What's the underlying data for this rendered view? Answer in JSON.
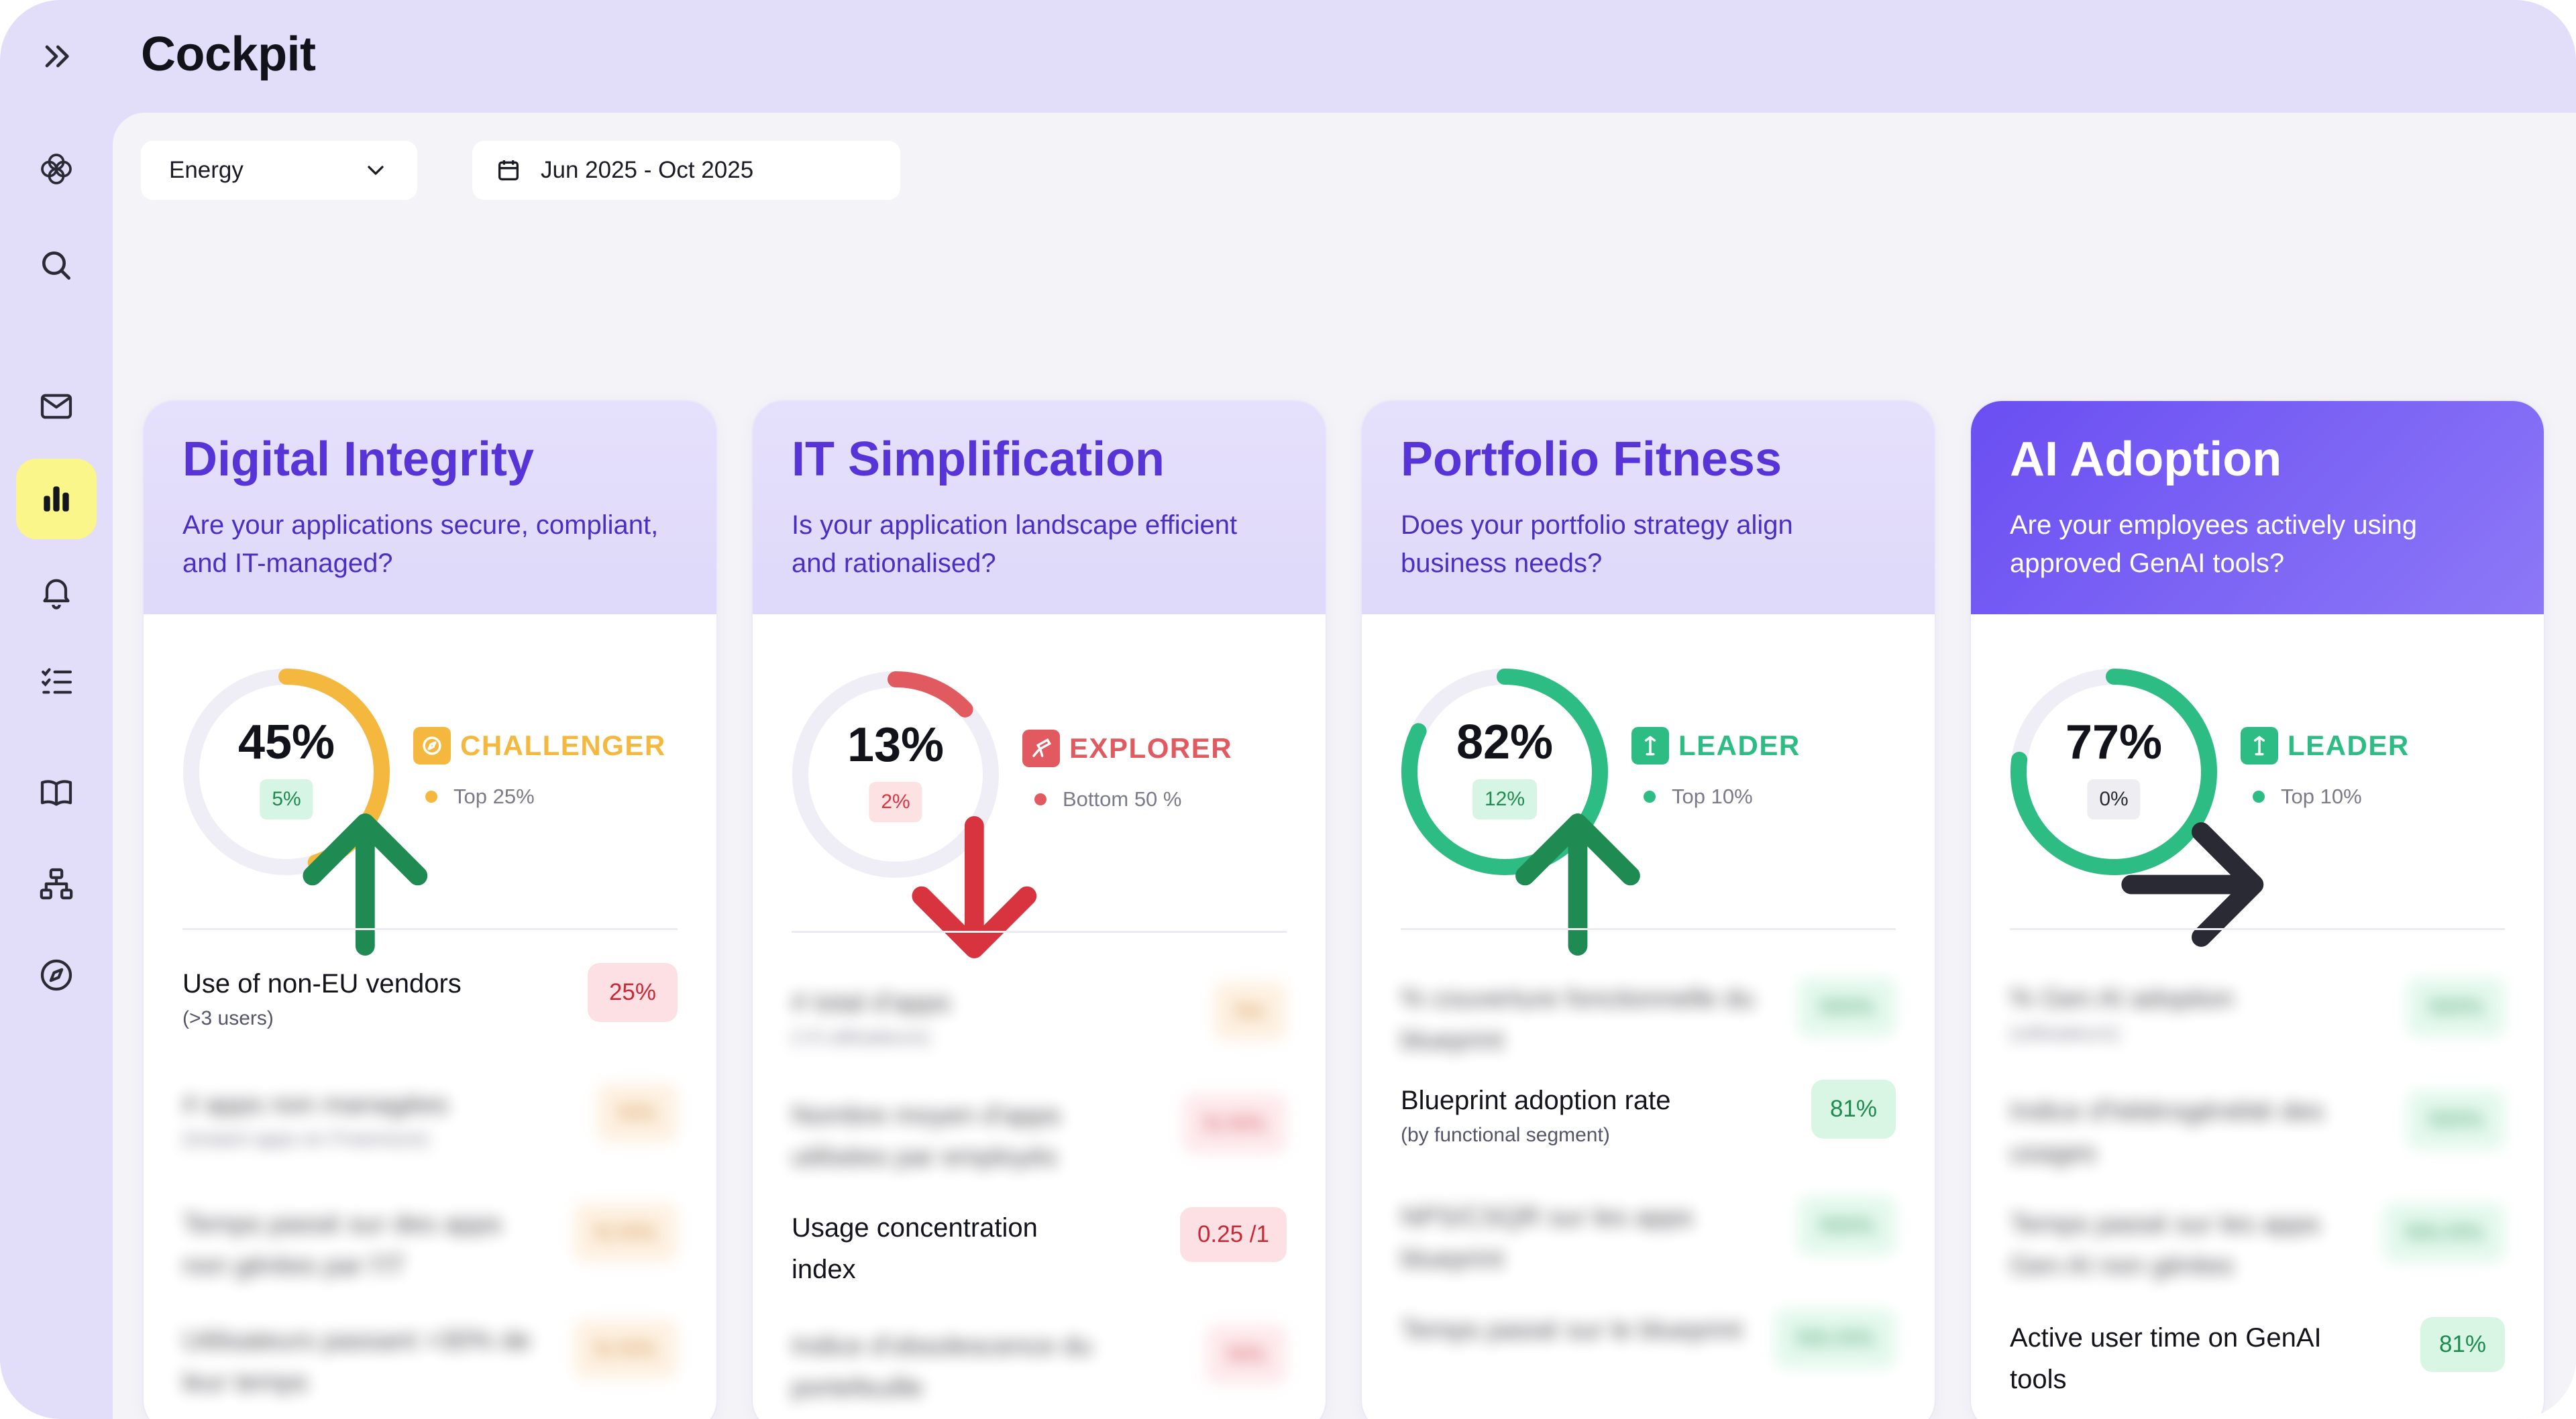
{
  "app": {
    "title": "Cockpit"
  },
  "colors": {
    "accent": "#5634d8",
    "challenger": "#f5b83f",
    "explorer": "#e05a5f",
    "leader": "#2dbc83",
    "active_nav": "#fbf68a"
  },
  "sidebar": {
    "items": [
      {
        "icon": "double-chevron-right-icon",
        "active": false
      },
      {
        "icon": "logo-icon",
        "active": false
      },
      {
        "icon": "search-icon",
        "active": false
      },
      {
        "icon": "mail-icon",
        "active": false
      },
      {
        "icon": "bar-chart-icon",
        "active": true
      },
      {
        "icon": "bell-icon",
        "active": false
      },
      {
        "icon": "checklist-icon",
        "active": false
      },
      {
        "icon": "book-icon",
        "active": false
      },
      {
        "icon": "hierarchy-icon",
        "active": false
      },
      {
        "icon": "compass-icon",
        "active": false
      }
    ]
  },
  "filters": {
    "sector": "Energy",
    "date_range": "Jun 2025 - Oct 2025"
  },
  "cards": [
    {
      "title": "Digital Integrity",
      "question": "Are your applications secure, compliant, and IT-managed?",
      "score": "45%",
      "score_fraction": 0.45,
      "delta": "5%",
      "delta_direction": "up",
      "badge": "CHALLENGER",
      "badge_icon": "compass-badge-icon",
      "rank": "Top 25%",
      "metrics": [
        {
          "label": "Use of non-EU vendors",
          "sub": "(>3 users)",
          "value": "25%"
        },
        {
          "label": "# apps non managées",
          "sub": "(instant apps en Freemium)",
          "value": "N%"
        },
        {
          "label": "Temps passé sur des apps non gérées par l'IT",
          "sub": "",
          "value": "N.N%"
        },
        {
          "label": "Utilisateurs passant >30% de leur temps",
          "sub": "",
          "value": "N.N%"
        }
      ]
    },
    {
      "title": "IT Simplification",
      "question": "Is your application landscape efficient and rationalised?",
      "score": "13%",
      "score_fraction": 0.13,
      "delta": "2%",
      "delta_direction": "down",
      "badge": "EXPLORER",
      "badge_icon": "telescope-icon",
      "rank": "Bottom 50 %",
      "metrics": [
        {
          "label": "# total d'apps",
          "sub": "(>3 utilisateurs)",
          "value": "Nn"
        },
        {
          "label": "Nombre moyen d'apps utilisées par employés",
          "sub": "",
          "value": "N.N%"
        },
        {
          "label": "Usage concentration index",
          "sub": "",
          "value": "0.25 /1"
        },
        {
          "label": "Indice d'obsolescence du portefeuille",
          "sub": "",
          "value": "N%"
        }
      ]
    },
    {
      "title": "Portfolio Fitness",
      "question": "Does your portfolio strategy align business needs?",
      "score": "82%",
      "score_fraction": 0.82,
      "delta": "12%",
      "delta_direction": "up",
      "badge": "LEADER",
      "badge_icon": "trophy-icon",
      "rank": "Top 10%",
      "metrics": [
        {
          "label": "% couverture fonctionnelle du blueprint",
          "sub": "",
          "value": "NN%"
        },
        {
          "label": "Blueprint adoption rate",
          "sub": "(by functional segment)",
          "value": "81%"
        },
        {
          "label": "NPS/CSQR sur les apps blueprint",
          "sub": "",
          "value": "NN%"
        },
        {
          "label": "Temps passé sur le blueprint",
          "sub": "",
          "value": "NN.N%"
        }
      ]
    },
    {
      "title": "AI Adoption",
      "question": "Are your employees actively using approved GenAI tools?",
      "score": "77%",
      "score_fraction": 0.77,
      "delta": "0%",
      "delta_direction": "flat",
      "badge": "LEADER",
      "badge_icon": "trophy-icon",
      "rank": "Top 10%",
      "metrics": [
        {
          "label": "% Gen AI adoption",
          "sub": "(utilisateurs)",
          "value": "NN%"
        },
        {
          "label": "Indice d'hétérogénéité des usages",
          "sub": "",
          "value": "NN%"
        },
        {
          "label": "Temps passé sur les apps Gen AI non gérées",
          "sub": "",
          "value": "NN.N%"
        },
        {
          "label": "Active user time on GenAI tools",
          "sub": "",
          "value": "81%"
        }
      ]
    }
  ]
}
